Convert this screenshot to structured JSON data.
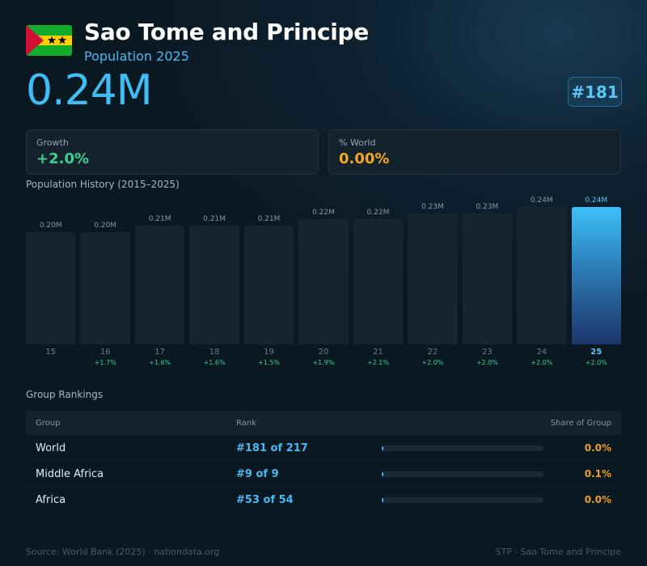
{
  "header": {
    "country": "Sao Tome and Principe",
    "subtitle": "Population 2025",
    "population": "0.24M",
    "rank": "#181",
    "flag_icon": "sao-tome-and-principe-flag",
    "colors": {
      "flag_green": "#12ad2b",
      "flag_yellow": "#ffce00",
      "flag_red": "#d21034",
      "flag_stars": "#000000"
    }
  },
  "stats": {
    "growth_label": "Growth",
    "growth_value": "+2.0%",
    "growth_color": "#3ecf8e",
    "world_label": "% World",
    "world_value": "0.00%",
    "world_color": "#f5a623"
  },
  "history_title": "Population History (2015–2025)",
  "chart_data": {
    "type": "bar",
    "title": "Population History (2015–2025)",
    "categories": [
      "15",
      "16",
      "17",
      "18",
      "19",
      "20",
      "21",
      "22",
      "23",
      "24",
      "25"
    ],
    "values": [
      0.2,
      0.2,
      0.21,
      0.21,
      0.21,
      0.22,
      0.22,
      0.23,
      0.23,
      0.24,
      0.24
    ],
    "value_labels": [
      "0.20M",
      "0.20M",
      "0.21M",
      "0.21M",
      "0.21M",
      "0.22M",
      "0.22M",
      "0.23M",
      "0.23M",
      "0.24M",
      "0.24M"
    ],
    "growth_labels": [
      "",
      "+1.7%",
      "+1.6%",
      "+1.6%",
      "+1.5%",
      "+1.9%",
      "+2.1%",
      "+2.0%",
      "+2.0%",
      "+2.0%",
      "+2.0%"
    ],
    "highlight_index": 10,
    "ylim": [
      0,
      0.24
    ],
    "grid": false,
    "colors": {
      "bar": "#18252f",
      "highlight_top": "#3cc0f8",
      "highlight_bottom": "#1d3468",
      "growth": "#3ecf8e"
    }
  },
  "rankings": {
    "title": "Group Rankings",
    "headers": {
      "group": "Group",
      "rank": "Rank",
      "share": "Share of Group"
    },
    "rows": [
      {
        "group": "World",
        "rank": "#181 of 217",
        "share": "0.0%",
        "share_value": 0.0
      },
      {
        "group": "Middle Africa",
        "rank": "#9 of 9",
        "share": "0.1%",
        "share_value": 0.1
      },
      {
        "group": "Africa",
        "rank": "#53 of 54",
        "share": "0.0%",
        "share_value": 0.0
      }
    ]
  },
  "footer": {
    "source": "Source: World Bank (2025) · nationdata.org",
    "right": "STP · Sao Tome and Principe"
  }
}
